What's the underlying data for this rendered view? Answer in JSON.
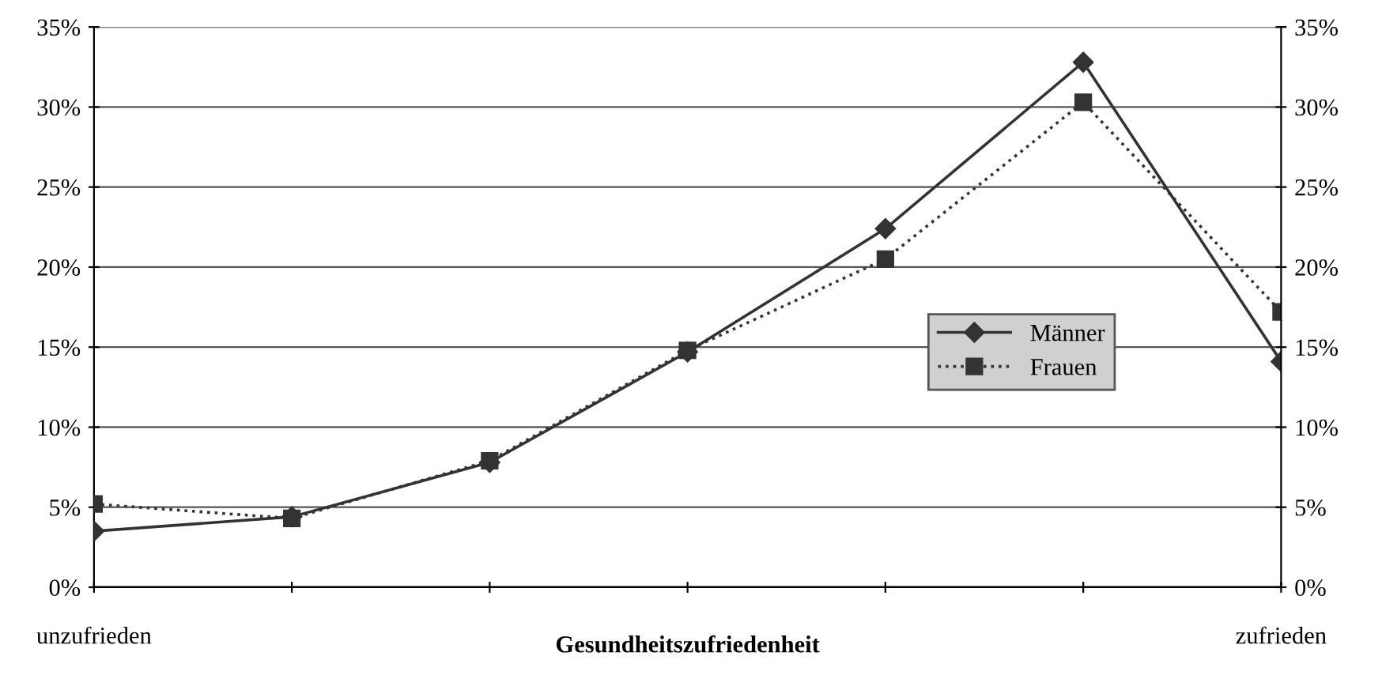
{
  "chart_data": {
    "type": "line",
    "xlabel": "Gesundheitszufriedenheit",
    "categories": [
      "unzufrieden",
      null,
      null,
      null,
      null,
      null,
      "zufrieden"
    ],
    "series": [
      {
        "name": "Männer",
        "color": "#333333",
        "marker": "diamond",
        "line_style": "solid",
        "values": [
          3.5,
          4.4,
          7.8,
          14.7,
          22.4,
          32.8,
          14.1
        ]
      },
      {
        "name": "Frauen",
        "color": "#333333",
        "marker": "square",
        "line_style": "dotted",
        "values": [
          5.2,
          4.3,
          7.9,
          14.8,
          20.5,
          30.3,
          17.2
        ]
      }
    ],
    "ylim": [
      0,
      35
    ],
    "yticks": [
      {
        "value": 0,
        "label": "0%"
      },
      {
        "value": 5,
        "label": "5%"
      },
      {
        "value": 10,
        "label": "10%"
      },
      {
        "value": 15,
        "label": "15%"
      },
      {
        "value": 20,
        "label": "20%"
      },
      {
        "value": 25,
        "label": "25%"
      },
      {
        "value": 30,
        "label": "30%"
      },
      {
        "value": 35,
        "label": "35%"
      }
    ],
    "y2lim": [
      0,
      35
    ],
    "y2ticks": [
      {
        "value": 0,
        "label": "0%"
      },
      {
        "value": 5,
        "label": "5%"
      },
      {
        "value": 10,
        "label": "10%"
      },
      {
        "value": 15,
        "label": "15%"
      },
      {
        "value": 20,
        "label": "20%"
      },
      {
        "value": 25,
        "label": "25%"
      },
      {
        "value": 30,
        "label": "30%"
      },
      {
        "value": 35,
        "label": "35%"
      }
    ],
    "grid": "y",
    "legend": "center right"
  }
}
